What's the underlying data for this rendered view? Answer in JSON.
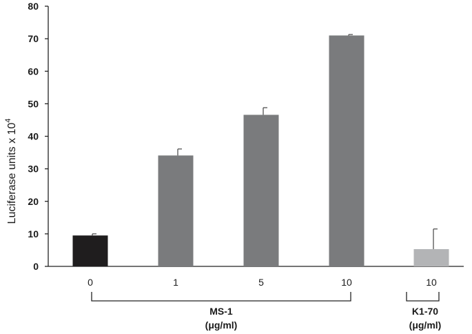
{
  "chart_data": {
    "type": "bar",
    "ylabel": "Luciferase units x 10",
    "ylabel_superscript": "4",
    "ylim": [
      0,
      80
    ],
    "yticks": [
      0,
      10,
      20,
      30,
      40,
      50,
      60,
      70,
      80
    ],
    "grid": false,
    "categories": [
      "0",
      "1",
      "5",
      "10",
      "10"
    ],
    "values": [
      9.5,
      34.1,
      46.6,
      71.0,
      5.3
    ],
    "errors": [
      0.5,
      2.0,
      2.2,
      0.3,
      6.2
    ],
    "colors": [
      "#1f1d1e",
      "#7a7b7d",
      "#7a7b7d",
      "#7a7b7d",
      "#b3b4b6"
    ],
    "groups": [
      {
        "line1": "MS-1",
        "line2": "(μg/ml)",
        "from": 0,
        "to": 3
      },
      {
        "line1": "K1-70",
        "line2": "(μg/ml)",
        "from": 4,
        "to": 4
      }
    ]
  }
}
